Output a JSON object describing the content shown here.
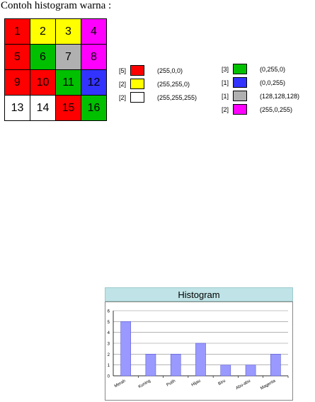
{
  "heading": "Contoh histogram warna :",
  "grid": [
    {
      "n": "1",
      "color": "#ff0000"
    },
    {
      "n": "2",
      "color": "#ffff00"
    },
    {
      "n": "3",
      "color": "#ffff00"
    },
    {
      "n": "4",
      "color": "#ff00ff"
    },
    {
      "n": "5",
      "color": "#ff0000"
    },
    {
      "n": "6",
      "color": "#00c000"
    },
    {
      "n": "7",
      "color": "#b0b0b0"
    },
    {
      "n": "8",
      "color": "#ff00ff"
    },
    {
      "n": "9",
      "color": "#ff0000"
    },
    {
      "n": "10",
      "color": "#ff0000"
    },
    {
      "n": "11",
      "color": "#00c000"
    },
    {
      "n": "12",
      "color": "#3333ff"
    },
    {
      "n": "13",
      "color": "#ffffff"
    },
    {
      "n": "14",
      "color": "#ffffff"
    },
    {
      "n": "15",
      "color": "#ff0000"
    },
    {
      "n": "16",
      "color": "#00c000"
    }
  ],
  "legend_left": [
    {
      "count": "[5]",
      "color": "#ff0000",
      "rgb": "(255,0,0)"
    },
    {
      "count": "[2]",
      "color": "#ffff00",
      "rgb": "(255,255,0)"
    },
    {
      "count": "[2]",
      "color": "#ffffff",
      "rgb": "(255,255,255)"
    }
  ],
  "legend_right": [
    {
      "count": "[3]",
      "color": "#00c000",
      "rgb": "(0,255,0)"
    },
    {
      "count": "[1]",
      "color": "#3333ff",
      "rgb": "(0,0,255)"
    },
    {
      "count": "[1]",
      "color": "#b0b0b0",
      "rgb": "(128,128,128)"
    },
    {
      "count": "[2]",
      "color": "#ff00ff",
      "rgb": "(255,0,255)"
    }
  ],
  "chart_data": {
    "type": "bar",
    "title": "Histogram",
    "categories": [
      "Merah",
      "Kuning",
      "Putih",
      "Hijau",
      "Biru",
      "Abu-abu",
      "Magenta"
    ],
    "values": [
      5,
      2,
      2,
      3,
      1,
      1,
      2
    ],
    "ylim": [
      0,
      6
    ],
    "yticks": [
      "0",
      "1",
      "2",
      "3",
      "4",
      "5",
      "6"
    ],
    "bar_color": "#9999ff",
    "grid": true
  }
}
